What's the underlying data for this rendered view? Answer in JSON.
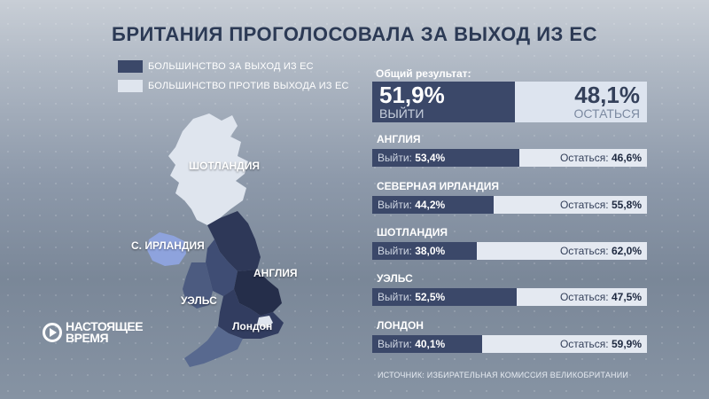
{
  "title": "БРИТАНИЯ ПРОГОЛОСОВАЛА ЗА ВЫХОД ИЗ ЕС",
  "legend": [
    {
      "label": "БОЛЬШИНСТВО ЗА ВЫХОД ИЗ ЕС",
      "color": "#3b4869"
    },
    {
      "label": "БОЛЬШИНСТВО ПРОТИВ ВЫХОДА ИЗ ЕС",
      "color": "#dfe5ee"
    }
  ],
  "map_labels": {
    "scotland": "ШОТЛАНДИЯ",
    "ni": "С. ИРЛАНДИЯ",
    "england": "АНГЛИЯ",
    "wales": "УЭЛЬС",
    "london": "Лондон"
  },
  "logo": {
    "line1": "НАСТОЯЩЕЕ",
    "line2": "ВРЕМЯ"
  },
  "overall": {
    "label": "Общий результат:",
    "leave_value": "51,9%",
    "leave_label": "ВЫЙТИ",
    "remain_value": "48,1%",
    "remain_label": "ОСТАТЬСЯ"
  },
  "leave_prefix": "Выйти: ",
  "remain_prefix": "Остаться: ",
  "source": "ИСТОЧНИК: ИЗБИРАТЕЛЬНАЯ КОМИССИЯ ВЕЛИКОБРИТАНИИ",
  "colors": {
    "leave": "#3b4869",
    "remain": "#e4e9f1"
  },
  "chart_data": {
    "type": "bar",
    "title": "БРИТАНИЯ ПРОГОЛОСОВАЛА ЗА ВЫХОД ИЗ ЕС",
    "overall": {
      "leave": 51.9,
      "remain": 48.1
    },
    "categories": [
      "АНГЛИЯ",
      "СЕВЕРНАЯ ИРЛАНДИЯ",
      "ШОТЛАНДИЯ",
      "УЭЛЬС",
      "ЛОНДОН"
    ],
    "series": [
      {
        "name": "Выйти",
        "values": [
          53.4,
          44.2,
          38.0,
          52.5,
          40.1
        ],
        "labels": [
          "53,4%",
          "44,2%",
          "38,0%",
          "52,5%",
          "40,1%"
        ]
      },
      {
        "name": "Остаться",
        "values": [
          46.6,
          55.8,
          62.0,
          47.5,
          59.9
        ],
        "labels": [
          "46,6%",
          "55,8%",
          "62,0%",
          "47,5%",
          "59,9%"
        ]
      }
    ],
    "stacked": true,
    "ylim": [
      0,
      100
    ]
  }
}
